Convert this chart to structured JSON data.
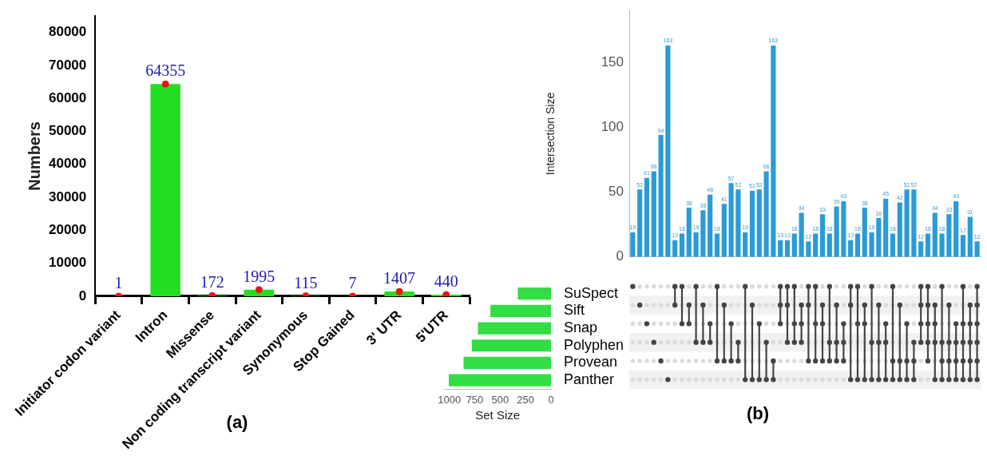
{
  "chart_data": [
    {
      "type": "bar",
      "ylabel": "Numbers",
      "categories": [
        "Initiator codon variant",
        "Intron",
        "Missense",
        "Non coding transcript variant",
        "Synonymous",
        "Stop Gained",
        "3' UTR",
        "5'UTR"
      ],
      "series": [
        {
          "type": "bar",
          "color": "#22dd22",
          "values": [
            1,
            64355,
            172,
            1995,
            115,
            7,
            1407,
            440
          ],
          "value_labels": [
            "1",
            "64355",
            "172",
            "1995",
            "115",
            "7",
            "1407",
            "440"
          ]
        },
        {
          "type": "scatter",
          "color": "#ee1111",
          "x": [
            "Initiator codon variant",
            "Intron",
            "Missense",
            "Non coding transcript variant",
            "Synonymous",
            "Stop Gained",
            "3' UTR",
            "5'UTR"
          ],
          "values": [
            1,
            64355,
            172,
            1995,
            115,
            7,
            1407,
            440
          ]
        }
      ],
      "ylim": [
        0,
        85000
      ],
      "yticks": [
        0,
        10000,
        20000,
        30000,
        40000,
        50000,
        60000,
        70000,
        80000
      ],
      "grid": false,
      "legend": false,
      "marker": "circle",
      "annotations": [
        "(a)"
      ]
    },
    {
      "type": "bar",
      "ylabel": "Intersection Size",
      "categories": [
        null,
        null,
        null,
        null,
        null,
        null,
        null,
        null,
        null,
        null,
        null,
        null,
        null,
        null,
        null,
        null,
        null,
        null,
        null,
        null,
        null,
        null,
        null,
        null,
        null,
        null,
        null,
        null,
        null,
        null,
        null,
        null,
        null,
        null,
        null,
        null,
        null,
        null,
        null,
        null,
        null,
        null,
        null,
        null,
        null,
        null,
        null,
        null,
        null,
        null
      ],
      "values": [
        19,
        52,
        61,
        66,
        94,
        163,
        13,
        18,
        38,
        19,
        36,
        48,
        18,
        41,
        57,
        52,
        19,
        51,
        52,
        66,
        163,
        13,
        13,
        18,
        34,
        12,
        18,
        33,
        18,
        39,
        43,
        13,
        18,
        38,
        19,
        30,
        45,
        18,
        42,
        52,
        52,
        12,
        18,
        34,
        18,
        33,
        43,
        17,
        31,
        12
      ],
      "color": "#2a9bd6",
      "ylim": [
        0,
        190
      ],
      "yticks": [
        0,
        50,
        100,
        150
      ],
      "data_labels": true,
      "grid": false,
      "legend": false,
      "tick_labels": "y",
      "annotations": [
        "(b)"
      ]
    },
    {
      "type": "bar",
      "orientation": "horizontal",
      "xlabel": "Set Size",
      "categories": [
        "SuSpect",
        "Sift",
        "Snap",
        "Polyphen",
        "Provean",
        "Panther"
      ],
      "values": [
        326,
        596,
        718,
        779,
        860,
        1005
      ],
      "color": "#33dd44",
      "xlim": [
        1050,
        0
      ],
      "xticks": [
        1000,
        750,
        500,
        250,
        0
      ],
      "grid": false,
      "legend": false
    }
  ]
}
